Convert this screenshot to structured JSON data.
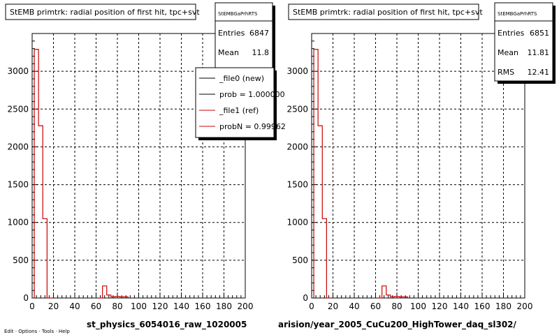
{
  "charts": [
    {
      "title": "StEMB primtrk: radial position of first hit, tpc+svt",
      "stats": {
        "header": "StEMBGaPrhRTS",
        "rows": [
          {
            "label": "Entries",
            "value": "6847"
          },
          {
            "label": "Mean",
            "value": "11.8"
          }
        ]
      },
      "legend": [
        {
          "label": "_file0 (new)",
          "color": "#000000"
        },
        {
          "label": "prob = 1.000000",
          "color": "#000000"
        },
        {
          "label": "_file1 (ref)",
          "color": "#cc0000"
        },
        {
          "label": "probN = 0.99962",
          "color": "#cc0000"
        }
      ],
      "footer": "st_physics_6054016_raw_1020005",
      "corner_text": "Edit · Options · Tools · Help"
    },
    {
      "title": "StEMB primtrk: radial position of first hit, tpc+svt",
      "stats": {
        "header": "StEMBGaPrhRTS",
        "rows": [
          {
            "label": "Entries",
            "value": "6851"
          },
          {
            "label": "Mean",
            "value": "11.81"
          },
          {
            "label": "RMS",
            "value": "12.41"
          }
        ]
      },
      "footer": "arision/year_2005_CuCu200_HighTower_daq_sl302/"
    }
  ],
  "chart_data": [
    {
      "type": "bar",
      "title": "StEMB primtrk: radial position of first hit, tpc+svt",
      "xlim": [
        0,
        200
      ],
      "ylim": [
        0,
        3500
      ],
      "xticks": [
        0,
        20,
        40,
        60,
        80,
        100,
        120,
        140,
        160,
        180,
        200
      ],
      "yticks": [
        0,
        500,
        1000,
        1500,
        2000,
        2500,
        3000
      ],
      "bin_width": 4,
      "series": [
        {
          "name": "_file1 (ref)",
          "color": "#cc0000",
          "x": [
            4,
            8,
            12,
            16,
            64,
            68,
            72,
            76,
            80,
            84,
            88
          ],
          "values": [
            3290,
            2280,
            1050,
            0,
            0,
            160,
            40,
            15,
            20,
            15,
            15
          ]
        }
      ],
      "grid": true
    },
    {
      "type": "bar",
      "title": "StEMB primtrk: radial position of first hit, tpc+svt",
      "xlim": [
        0,
        200
      ],
      "ylim": [
        0,
        3500
      ],
      "xticks": [
        0,
        20,
        40,
        60,
        80,
        100,
        120,
        140,
        160,
        180,
        200
      ],
      "yticks": [
        0,
        500,
        1000,
        1500,
        2000,
        2500,
        3000
      ],
      "bin_width": 4,
      "series": [
        {
          "name": "_file1 (ref)",
          "color": "#cc0000",
          "x": [
            4,
            8,
            12,
            16,
            64,
            68,
            72,
            76,
            80,
            84,
            88
          ],
          "values": [
            3290,
            2280,
            1050,
            0,
            0,
            160,
            40,
            15,
            20,
            15,
            15
          ]
        }
      ],
      "grid": true
    }
  ]
}
